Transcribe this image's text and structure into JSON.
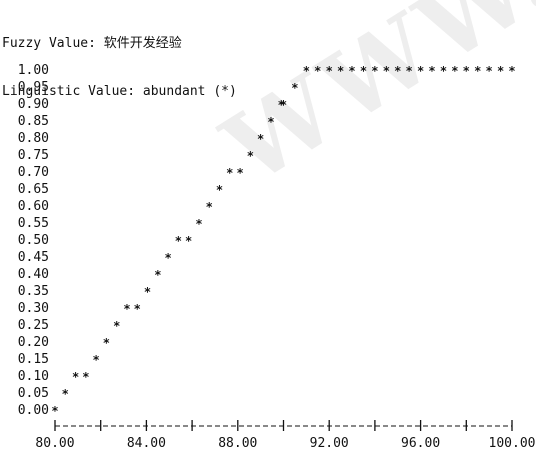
{
  "header": {
    "fuzzy_label": "Fuzzy Value:",
    "fuzzy_value": "软件开发经验",
    "linguistic_label": "Linguistic Value:",
    "linguistic_value": "abundant (*)"
  },
  "watermark": "WWW.",
  "chart_data": {
    "type": "scatter",
    "title": "",
    "xlabel": "",
    "ylabel": "",
    "marker": "*",
    "xlim": [
      80.0,
      100.0
    ],
    "ylim": [
      0.0,
      1.0
    ],
    "grid": false,
    "x_ticks": [
      "80.00",
      "84.00",
      "88.00",
      "92.00",
      "96.00",
      "100.00"
    ],
    "y_ticks": [
      "1.00",
      "0.95",
      "0.90",
      "0.85",
      "0.80",
      "0.75",
      "0.70",
      "0.65",
      "0.60",
      "0.55",
      "0.50",
      "0.45",
      "0.40",
      "0.35",
      "0.30",
      "0.25",
      "0.20",
      "0.15",
      "0.10",
      "0.05",
      "0.00"
    ],
    "series": [
      {
        "x": [
          80.0,
          80.45,
          80.9,
          81.35,
          81.8,
          82.25,
          82.7,
          83.15,
          83.6,
          84.05,
          84.5,
          84.95,
          85.4,
          85.85,
          86.3,
          86.75,
          87.2,
          87.65,
          88.1,
          88.55,
          89.0,
          89.45,
          89.9,
          90.0,
          90.5,
          91.0,
          91.5,
          92.0,
          92.5,
          93.0,
          93.5,
          94.0,
          94.5,
          95.0,
          95.5,
          96.0,
          96.5,
          97.0,
          97.5,
          98.0,
          98.5,
          99.0,
          99.5,
          100.0
        ],
        "y": [
          0.0,
          0.05,
          0.1,
          0.1,
          0.15,
          0.2,
          0.25,
          0.3,
          0.3,
          0.35,
          0.4,
          0.45,
          0.5,
          0.5,
          0.55,
          0.6,
          0.65,
          0.7,
          0.7,
          0.75,
          0.8,
          0.85,
          0.9,
          0.9,
          0.95,
          1.0,
          1.0,
          1.0,
          1.0,
          1.0,
          1.0,
          1.0,
          1.0,
          1.0,
          1.0,
          1.0,
          1.0,
          1.0,
          1.0,
          1.0,
          1.0,
          1.0,
          1.0,
          1.0
        ]
      }
    ]
  }
}
